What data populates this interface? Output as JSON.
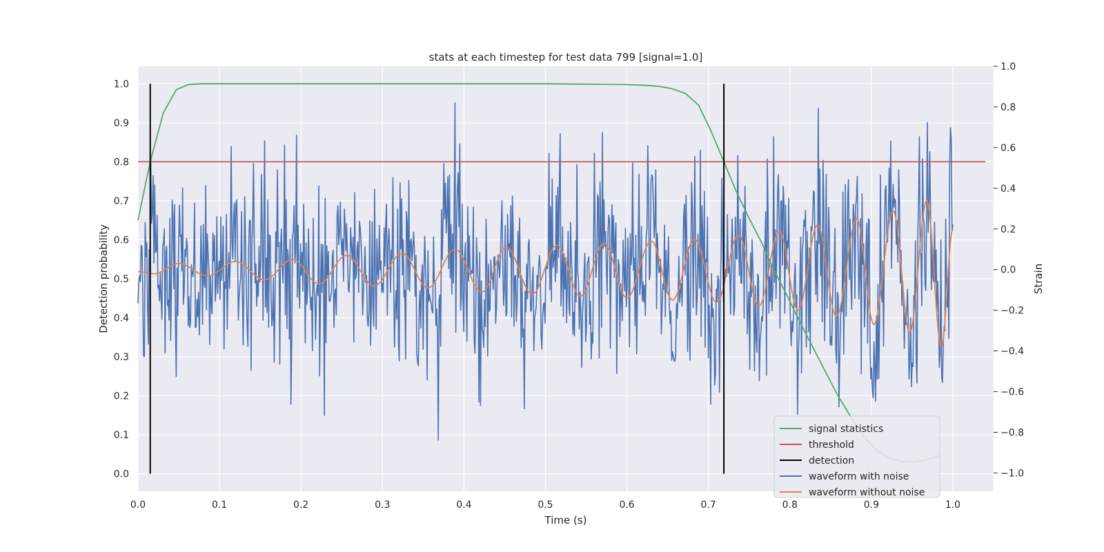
{
  "chart_data": {
    "type": "line",
    "title": "stats at each timestep for test data 799 [signal=1.0]",
    "xlabel": "Time (s)",
    "ylabel": "Detection probability",
    "y2label": "Strain",
    "xlim": [
      0.0,
      1.05
    ],
    "ylim": [
      -0.045,
      1.045
    ],
    "y2lim": [
      -1.09,
      1.0
    ],
    "x_ticks": [
      "0.0",
      "0.1",
      "0.2",
      "0.3",
      "0.4",
      "0.5",
      "0.6",
      "0.7",
      "0.8",
      "0.9",
      "1.0"
    ],
    "y_ticks": [
      "0.0",
      "0.1",
      "0.2",
      "0.3",
      "0.4",
      "0.5",
      "0.6",
      "0.7",
      "0.8",
      "0.9",
      "1.0"
    ],
    "y2_ticks": [
      "−1.0",
      "−0.8",
      "−0.6",
      "−0.4",
      "−0.2",
      "0.0",
      "0.2",
      "0.4",
      "0.6",
      "0.8",
      "1.0"
    ],
    "grid": true,
    "legend_position": "lower-right",
    "colors": {
      "background": "#eaeaf2",
      "grid": "#ffffff",
      "signal": "#55a868",
      "threshold": "#c44e52",
      "detection": "#000000",
      "noisy": "#4c72b0",
      "clean": "#dd8452"
    },
    "legend": [
      {
        "label": "signal statistics",
        "color": "#55a868"
      },
      {
        "label": "threshold",
        "color": "#c44e52"
      },
      {
        "label": "detection",
        "color": "#000000"
      },
      {
        "label": "waveform with noise",
        "color": "#4c72b0"
      },
      {
        "label": "waveform without noise",
        "color": "#dd8452"
      }
    ],
    "series": [
      {
        "name": "signal statistics",
        "axis": "left",
        "x": [
          0.0,
          0.015,
          0.031,
          0.047,
          0.062,
          0.078,
          0.094,
          0.2,
          0.4,
          0.5,
          0.6,
          0.625,
          0.641,
          0.656,
          0.672,
          0.688,
          0.703,
          0.719,
          0.734,
          0.75,
          0.766,
          0.781,
          0.797,
          0.812,
          0.828,
          0.844,
          0.859,
          0.875,
          0.891,
          0.906,
          0.922,
          0.938,
          0.953,
          0.969,
          0.984
        ],
        "y": [
          0.65,
          0.8,
          0.925,
          0.985,
          0.998,
          1.0,
          1.0,
          1.0,
          1.0,
          1.0,
          0.998,
          0.996,
          0.993,
          0.987,
          0.975,
          0.945,
          0.88,
          0.8,
          0.725,
          0.655,
          0.59,
          0.52,
          0.455,
          0.39,
          0.325,
          0.26,
          0.2,
          0.145,
          0.095,
          0.06,
          0.04,
          0.032,
          0.03,
          0.036,
          0.047
        ]
      },
      {
        "name": "threshold",
        "axis": "left",
        "x": [
          0.0,
          1.04
        ],
        "y": [
          0.8,
          0.8
        ]
      },
      {
        "name": "detection",
        "axis": "left",
        "type": "vlines",
        "x": [
          0.015,
          0.719
        ],
        "ymin": 0.0,
        "ymax": 1.0
      },
      {
        "name": "waveform with noise",
        "axis": "right",
        "type": "noise",
        "x_range": [
          0.0,
          1.0
        ],
        "points": 1024,
        "std": 0.24,
        "seed": 799,
        "strain_range": [
          -0.9,
          1.0
        ]
      },
      {
        "name": "waveform without noise",
        "axis": "right",
        "type": "chirp",
        "x": [
          0.0,
          0.02,
          0.05,
          0.085,
          0.12,
          0.155,
          0.19,
          0.222,
          0.256,
          0.29,
          0.324,
          0.356,
          0.389,
          0.422,
          0.452,
          0.484,
          0.514,
          0.543,
          0.572,
          0.6,
          0.63,
          0.656,
          0.683,
          0.71,
          0.737,
          0.762,
          0.787,
          0.81,
          0.834,
          0.857,
          0.882,
          0.903,
          0.927,
          0.947,
          0.968,
          0.986,
          1.0
        ],
        "y": [
          -0.01,
          -0.02,
          0.03,
          -0.03,
          0.04,
          -0.05,
          0.05,
          -0.07,
          0.07,
          -0.08,
          0.08,
          -0.09,
          0.1,
          -0.11,
          0.11,
          -0.12,
          0.12,
          -0.13,
          0.13,
          -0.14,
          0.14,
          -0.15,
          0.15,
          -0.16,
          0.17,
          -0.18,
          0.19,
          -0.2,
          0.22,
          -0.23,
          0.25,
          -0.27,
          0.29,
          -0.31,
          0.34,
          -0.38,
          0.2
        ]
      }
    ]
  }
}
